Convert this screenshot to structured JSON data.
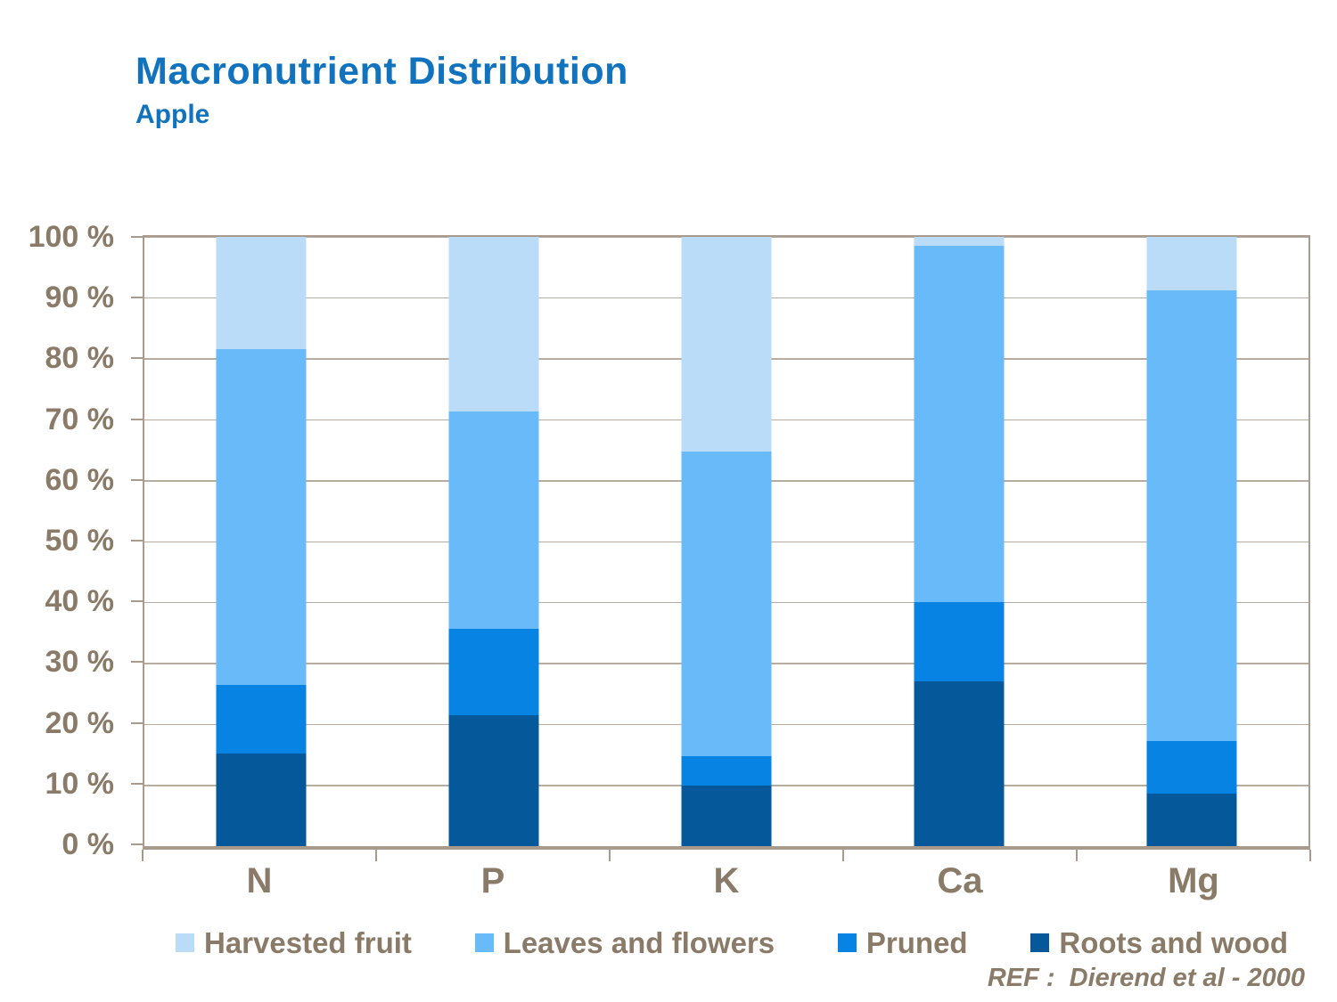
{
  "reference": "REF :  Dierend et al - 2000",
  "colors": {
    "title_blue": "#1173bd",
    "axis_text_brown": "#8a7a68",
    "gridline": "#b7ac9f",
    "axis_border": "#a89b8d",
    "background": "#ffffff"
  },
  "chart_data": {
    "type": "bar",
    "subtype": "stacked-column-100",
    "title": "Macronutrient Distribution",
    "subtitle": "Apple",
    "categories": [
      "N",
      "P",
      "K",
      "Ca",
      "Mg"
    ],
    "series": [
      {
        "name": "Harvested fruit",
        "color": "#badcf9",
        "values": [
          18.4,
          28.6,
          35.2,
          1.5,
          8.7
        ]
      },
      {
        "name": "Leaves and flowers",
        "color": "#68baf8",
        "values": [
          55.1,
          35.7,
          50.0,
          58.5,
          74.0
        ]
      },
      {
        "name": "Pruned",
        "color": "#0783e3",
        "values": [
          11.3,
          14.2,
          4.9,
          13.0,
          8.6
        ]
      },
      {
        "name": "Roots and wood",
        "color": "#05599b",
        "values": [
          15.2,
          21.5,
          9.9,
          27.0,
          8.7
        ]
      }
    ],
    "stack_order_bottom_to_top": [
      "Roots and wood",
      "Pruned",
      "Leaves and flowers",
      "Harvested fruit"
    ],
    "ylabel": "",
    "xlabel": "",
    "ylim": [
      0,
      100
    ],
    "yticks": [
      "0 %",
      "10 %",
      "20 %",
      "30 %",
      "40 %",
      "50 %",
      "60 %",
      "70 %",
      "80 %",
      "90 %",
      "100 %"
    ],
    "grid": "horizontal",
    "legend_position": "bottom"
  }
}
